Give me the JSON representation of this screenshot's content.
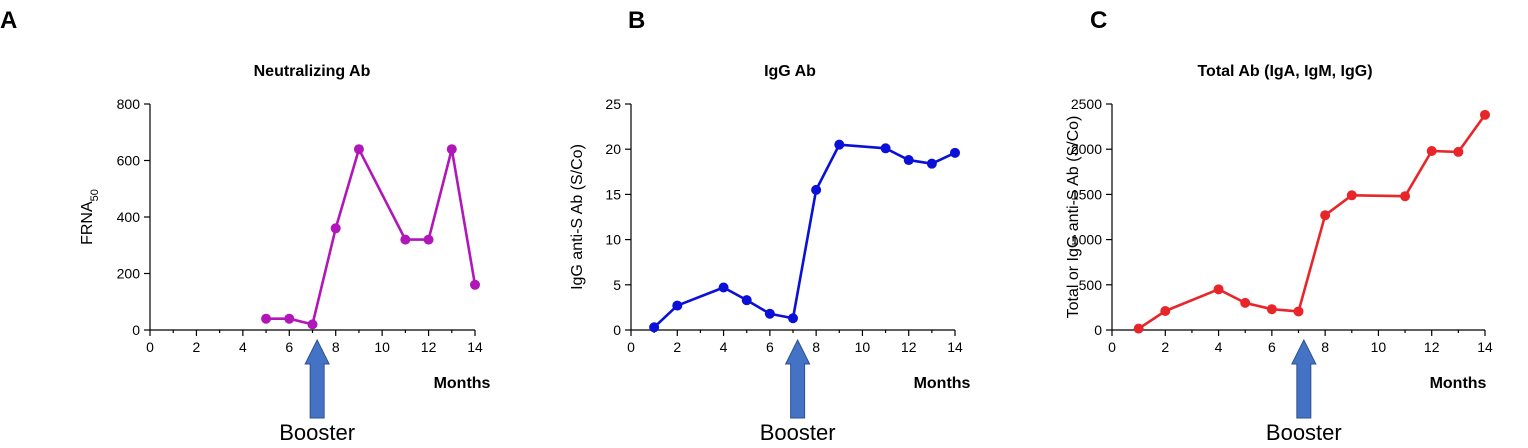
{
  "chart_data": [
    {
      "panel": "A",
      "type": "line",
      "title": "Neutralizing Ab",
      "ylabel": "FRNA",
      "ylabel_sub": "50",
      "xlabel": "Months",
      "xlim": [
        0,
        14
      ],
      "ylim": [
        0,
        800
      ],
      "xticks": [
        0,
        2,
        4,
        6,
        8,
        10,
        12,
        14
      ],
      "yticks": [
        0,
        200,
        400,
        600,
        800
      ],
      "color": "#b016b8",
      "annotation": "Booster",
      "booster_x": 7.2,
      "points": [
        [
          5,
          40
        ],
        [
          6,
          40
        ],
        [
          7,
          20
        ],
        [
          8,
          360
        ],
        [
          9,
          640
        ],
        [
          11,
          320
        ],
        [
          12,
          320
        ],
        [
          13,
          640
        ],
        [
          14,
          160
        ]
      ]
    },
    {
      "panel": "B",
      "type": "line",
      "title": "IgG Ab",
      "ylabel": "IgG anti-S Ab (S/Co)",
      "xlabel": "Months",
      "xlim": [
        0,
        14
      ],
      "ylim": [
        0,
        25
      ],
      "xticks": [
        0,
        2,
        4,
        6,
        8,
        10,
        12,
        14
      ],
      "yticks": [
        0,
        5,
        10,
        15,
        20,
        25
      ],
      "color": "#0a10d8",
      "annotation": "Booster",
      "booster_x": 7.2,
      "points": [
        [
          1,
          0.3
        ],
        [
          2,
          2.7
        ],
        [
          4,
          4.7
        ],
        [
          5,
          3.3
        ],
        [
          6,
          1.8
        ],
        [
          7,
          1.3
        ],
        [
          8,
          15.5
        ],
        [
          9,
          20.5
        ],
        [
          11,
          20.1
        ],
        [
          12,
          18.8
        ],
        [
          13,
          18.4
        ],
        [
          14,
          19.6
        ]
      ]
    },
    {
      "panel": "C",
      "type": "line",
      "title": "Total Ab (IgA,  IgM,  IgG)",
      "ylabel": "Total or IgG anti-S Ab (S/Co)",
      "xlabel": "Months",
      "xlim": [
        0,
        14
      ],
      "ylim": [
        0,
        2500
      ],
      "xticks": [
        0,
        2,
        4,
        6,
        8,
        10,
        12,
        14
      ],
      "yticks": [
        0,
        500,
        1000,
        1500,
        2000,
        2500
      ],
      "color": "#e8262a",
      "annotation": "Booster",
      "booster_x": 7.2,
      "points": [
        [
          1,
          15
        ],
        [
          2,
          210
        ],
        [
          4,
          450
        ],
        [
          5,
          300
        ],
        [
          6,
          230
        ],
        [
          7,
          205
        ],
        [
          8,
          1270
        ],
        [
          9,
          1490
        ],
        [
          11,
          1480
        ],
        [
          12,
          1980
        ],
        [
          13,
          1970
        ],
        [
          14,
          2380
        ]
      ]
    }
  ],
  "colors": {
    "arrow": "#4472c4",
    "arrow_edge": "#2f528f"
  }
}
